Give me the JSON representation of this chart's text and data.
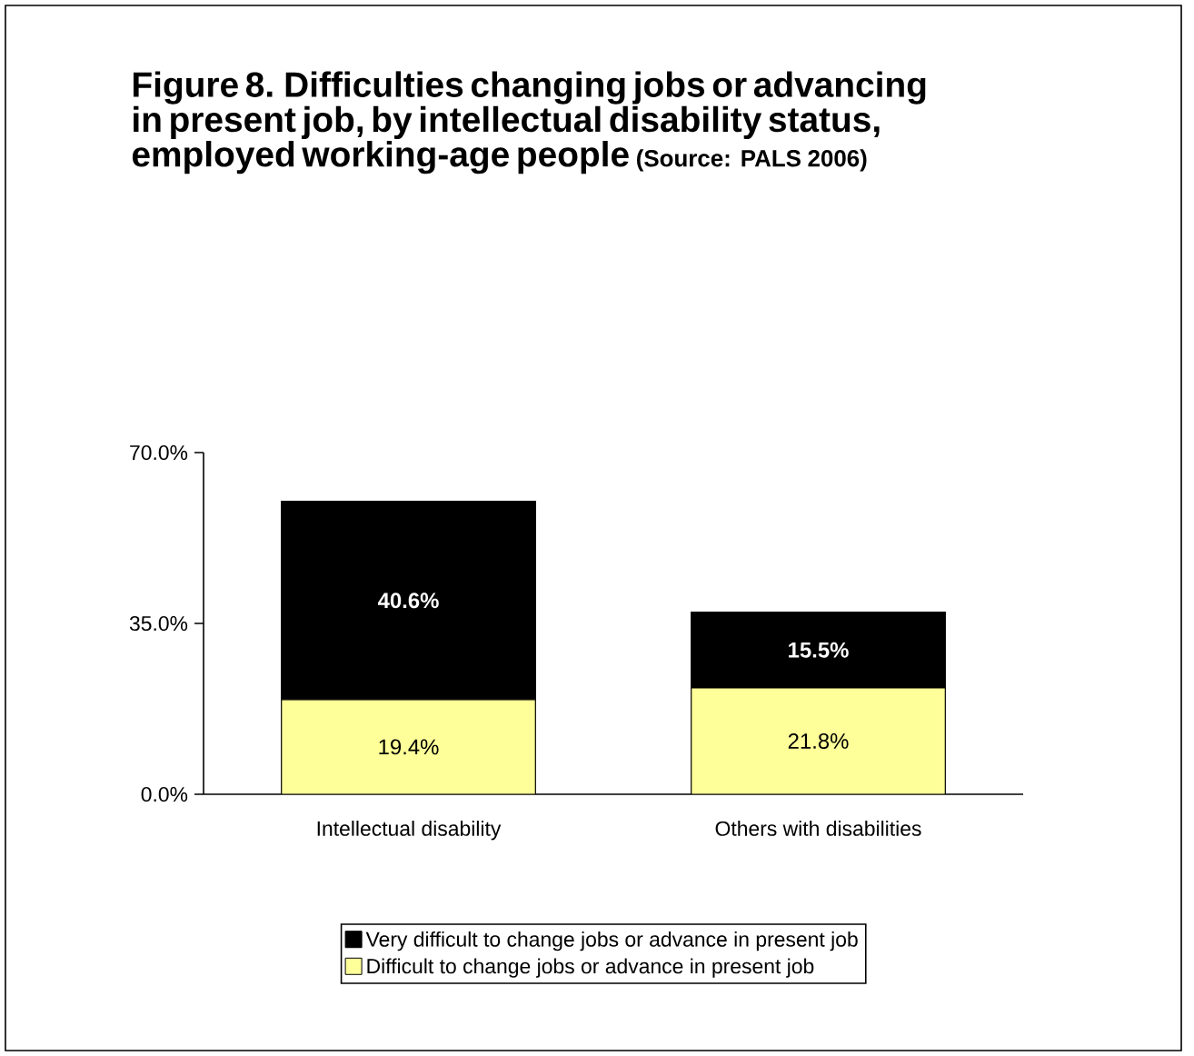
{
  "chart_data": {
    "type": "bar",
    "title": "Figure 8. Difficulties changing jobs or advancing in present job, by intellectual disability status, employed working-age people",
    "subtitle": "(Source: PALS 2006)",
    "categories": [
      "Intellectual disability",
      "Others with disabilities"
    ],
    "stacked": true,
    "series": [
      {
        "name": "Difficult to change jobs or advance in present job",
        "color": "#ffff99",
        "values": [
          19.4,
          21.8
        ],
        "value_labels": [
          "19.4%",
          "21.8%"
        ]
      },
      {
        "name": "Very difficult to change jobs or advance in present job",
        "color": "#000000",
        "values": [
          40.6,
          15.5
        ],
        "value_labels": [
          "40.6%",
          "15.5%"
        ]
      }
    ],
    "ylim": [
      0,
      70
    ],
    "yticks": [
      {
        "value": 0,
        "label": "0.0%"
      },
      {
        "value": 35,
        "label": "35.0%"
      },
      {
        "value": 70,
        "label": "70.0%"
      }
    ],
    "legend": "bottom",
    "grid": false
  }
}
